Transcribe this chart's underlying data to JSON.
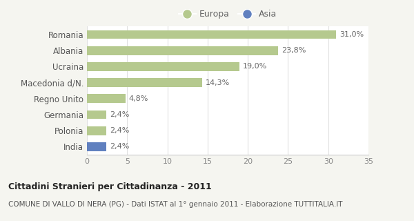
{
  "categories": [
    "Romania",
    "Albania",
    "Ucraina",
    "Macedonia d/N.",
    "Regno Unito",
    "Germania",
    "Polonia",
    "India"
  ],
  "values": [
    31.0,
    23.8,
    19.0,
    14.3,
    4.8,
    2.4,
    2.4,
    2.4
  ],
  "labels": [
    "31,0%",
    "23,8%",
    "19,0%",
    "14,3%",
    "4,8%",
    "2,4%",
    "2,4%",
    "2,4%"
  ],
  "bar_colors": [
    "#b5c98e",
    "#b5c98e",
    "#b5c98e",
    "#b5c98e",
    "#b5c98e",
    "#b5c98e",
    "#b5c98e",
    "#6080bf"
  ],
  "europa_color": "#b5c98e",
  "asia_color": "#6080bf",
  "xlim": [
    0,
    35
  ],
  "xticks": [
    0,
    5,
    10,
    15,
    20,
    25,
    30,
    35
  ],
  "title": "Cittadini Stranieri per Cittadinanza - 2011",
  "subtitle": "COMUNE DI VALLO DI NERA (PG) - Dati ISTAT al 1° gennaio 2011 - Elaborazione TUTTITALIA.IT",
  "legend_europa": "Europa",
  "legend_asia": "Asia",
  "bg_color": "#f5f5f0",
  "plot_bg_color": "#ffffff",
  "grid_color": "#e0e0e0",
  "bar_height": 0.55
}
